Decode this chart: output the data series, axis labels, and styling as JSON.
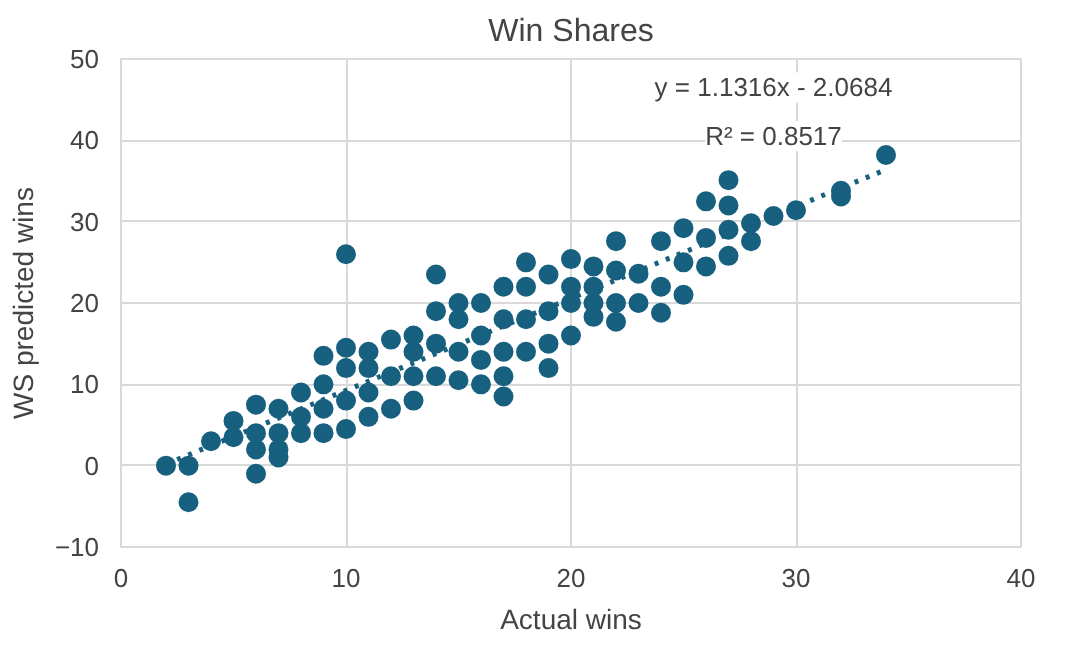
{
  "chart_data": {
    "type": "scatter",
    "title": "Win Shares",
    "xlabel": "Actual wins",
    "ylabel": "WS predicted wins",
    "xlim": [
      0,
      40
    ],
    "xticks": [
      0,
      10,
      20,
      30,
      40
    ],
    "ylim": [
      -10,
      50
    ],
    "yticks": [
      -10,
      0,
      10,
      20,
      30,
      40,
      50
    ],
    "grid": true,
    "marker": "circle",
    "annotations": [
      "y = 1.1316x - 2.0684",
      "R² = 0.8517"
    ],
    "series": [
      {
        "color": "#17607f",
        "x": [
          2,
          3,
          3,
          4,
          5,
          5,
          6,
          6,
          6,
          6,
          7,
          7,
          7,
          7,
          8,
          8,
          8,
          9,
          9,
          9,
          9,
          10,
          10,
          10,
          10,
          10,
          11,
          11,
          11,
          11,
          12,
          12,
          12,
          13,
          13,
          13,
          13,
          14,
          14,
          14,
          14,
          15,
          15,
          15,
          15,
          16,
          16,
          16,
          16,
          17,
          17,
          17,
          17,
          17,
          18,
          18,
          18,
          18,
          19,
          19,
          19,
          19,
          20,
          20,
          20,
          20,
          21,
          21,
          21,
          21,
          22,
          22,
          22,
          22,
          23,
          23,
          24,
          24,
          24,
          25,
          25,
          25,
          26,
          26,
          26,
          27,
          27,
          27,
          27,
          28,
          28,
          29,
          30,
          32,
          32,
          34
        ],
        "values": [
          0,
          0,
          -4.5,
          3,
          3.5,
          5.5,
          -1,
          2,
          4,
          7.5,
          1,
          2,
          4,
          7,
          4,
          6,
          9,
          4,
          7,
          10,
          13.5,
          4.5,
          8,
          12,
          14.5,
          26,
          6,
          9,
          12,
          14,
          7,
          11,
          15.5,
          8,
          11,
          14,
          16,
          11,
          15,
          19,
          23.5,
          10.5,
          14,
          18,
          20,
          10,
          13,
          16,
          20,
          8.5,
          11,
          14,
          18,
          22,
          14,
          18,
          22,
          25,
          12,
          15,
          19,
          23.5,
          16,
          20,
          22,
          25.4,
          18.3,
          20,
          22,
          24.5,
          17.7,
          20,
          24,
          27.6,
          20,
          23.6,
          18.8,
          22,
          27.6,
          21,
          25,
          29.2,
          24.5,
          28,
          32.5,
          25.8,
          29,
          32,
          35.1,
          27.6,
          29.8,
          30.7,
          31.4,
          33.1,
          33.8,
          38.2
        ]
      },
      {
        "type": "line",
        "color": "#17607f",
        "marker": "none",
        "line_style": "dotted",
        "x": [
          2,
          34
        ],
        "values": [
          0.2,
          36.4
        ]
      }
    ]
  }
}
